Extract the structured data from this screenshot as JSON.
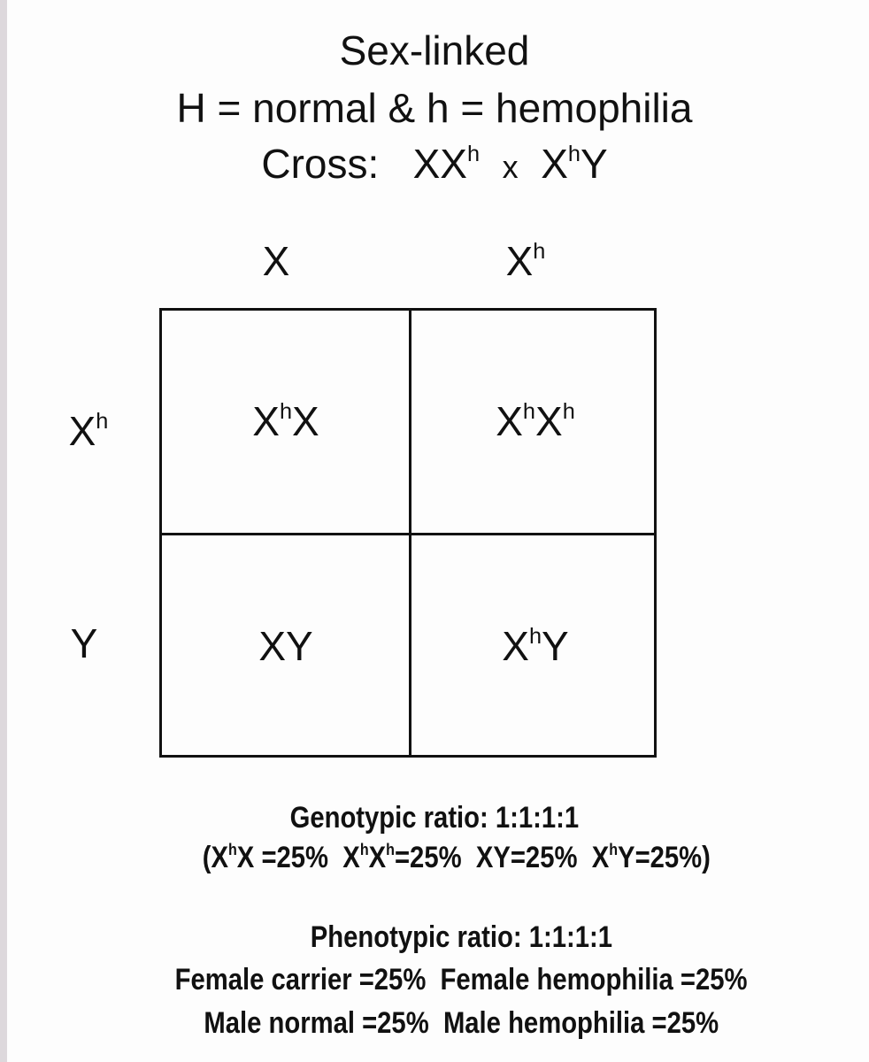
{
  "title": "Sex-linked",
  "legend": "H = normal & h = hemophilia",
  "cross": {
    "label": "Cross:",
    "female": [
      {
        "b": "X"
      },
      {
        "b": "X",
        "s": "h"
      }
    ],
    "times": "x",
    "male": [
      {
        "b": "X",
        "s": "h"
      },
      {
        "b": "Y"
      }
    ]
  },
  "columns": [
    [
      {
        "b": "X"
      }
    ],
    [
      {
        "b": "X",
        "s": "h"
      }
    ]
  ],
  "rows": [
    [
      {
        "b": "X",
        "s": "h"
      }
    ],
    [
      {
        "b": "Y"
      }
    ]
  ],
  "cells": [
    [
      [
        {
          "b": "X",
          "s": "h"
        },
        {
          "b": "X"
        }
      ],
      [
        {
          "b": "X",
          "s": "h"
        },
        {
          "b": "X",
          "s": "h"
        }
      ]
    ],
    [
      [
        {
          "b": "X"
        },
        {
          "b": "Y"
        }
      ],
      [
        {
          "b": "X",
          "s": "h"
        },
        {
          "b": "Y"
        }
      ]
    ]
  ],
  "genotypic": {
    "heading": "Genotypic ratio: 1:1:1:1",
    "open": "(",
    "items": [
      {
        "g": [
          {
            "b": "X",
            "s": "h"
          },
          {
            "b": "X"
          }
        ],
        "v": " =25%"
      },
      {
        "g": [
          {
            "b": "X",
            "s": "h"
          },
          {
            "b": "X",
            "s": "h"
          }
        ],
        "v": "=25%"
      },
      {
        "g": [
          {
            "b": "X"
          },
          {
            "b": "Y"
          }
        ],
        "v": "=25%"
      },
      {
        "g": [
          {
            "b": "X",
            "s": "h"
          },
          {
            "b": "Y"
          }
        ],
        "v": "=25%"
      }
    ],
    "close": ")"
  },
  "phenotypic": {
    "heading": "Phenotypic ratio: 1:1:1:1",
    "line1": "Female carrier =25%  Female hemophilia =25%",
    "line2": "Male normal =25%  Male hemophilia =25%"
  }
}
